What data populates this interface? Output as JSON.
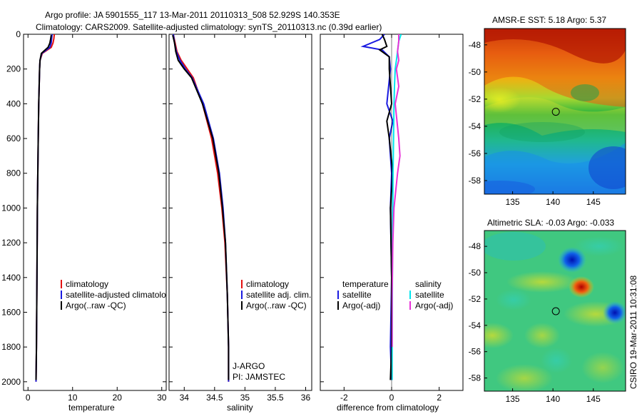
{
  "header": {
    "line1": "Argo profile: JA 5901555_117 13-Mar-2011 20110313_508 52.929S 140.353E",
    "line2": "Climatology: CARS2009. Satellite-adjusted climatology: synTS_20110313.nc (0.39d earlier)"
  },
  "footer_stamp": "CSIRO 19-Mar-2011 10:31:08",
  "colors": {
    "red": "#e41010",
    "blue": "#1a1ae0",
    "black": "#000000",
    "cyan": "#00e5ee",
    "magenta": "#e832d8"
  },
  "chart_data": [
    {
      "type": "line",
      "id": "temperature",
      "xlabel": "temperature",
      "ylabel": "",
      "xlim": [
        -1,
        31
      ],
      "ylim": [
        2050,
        0
      ],
      "xticks": [
        0,
        10,
        20,
        30
      ],
      "xtick_labels": [
        "0",
        "10",
        "20",
        "30"
      ],
      "yticks": [
        0,
        200,
        400,
        600,
        800,
        1000,
        1200,
        1400,
        1600,
        1800,
        2000
      ],
      "ytick_labels": [
        "0",
        "200",
        "400",
        "600",
        "800",
        "1000",
        "1200",
        "1400",
        "1600",
        "1800",
        "2000"
      ],
      "legend": [
        "climatology",
        "satellite-adjusted climatology",
        "Argo(..raw -QC)"
      ],
      "series": [
        {
          "name": "climatology",
          "color": "red",
          "x": [
            5.9,
            5.8,
            5.6,
            5.2,
            3.2,
            2.7,
            2.6,
            2.4,
            2.3,
            2.2,
            2.1,
            2.0,
            1.9,
            1.8
          ],
          "y": [
            0,
            25,
            50,
            75,
            110,
            150,
            200,
            400,
            600,
            800,
            1000,
            1400,
            1800,
            2000
          ]
        },
        {
          "name": "satellite-adjusted climatology",
          "color": "blue",
          "x": [
            5.4,
            5.3,
            5.2,
            4.9,
            3.1,
            2.7,
            2.6,
            2.4,
            2.3,
            2.2,
            2.1,
            2.0,
            1.9,
            1.8
          ],
          "y": [
            0,
            25,
            50,
            75,
            110,
            150,
            200,
            400,
            600,
            800,
            1000,
            1400,
            1800,
            2000
          ]
        },
        {
          "name": "Argo(..raw -QC)",
          "color": "black",
          "x": [
            5.2,
            5.1,
            4.9,
            4.5,
            3.0,
            2.7,
            2.6,
            2.4,
            2.3,
            2.2,
            2.1,
            2.0,
            1.9,
            1.8
          ],
          "y": [
            5,
            25,
            50,
            75,
            110,
            150,
            200,
            400,
            600,
            800,
            1000,
            1400,
            1800,
            1990
          ]
        }
      ]
    },
    {
      "type": "line",
      "id": "salinity",
      "xlabel": "salinity",
      "xlim": [
        33.75,
        36.1
      ],
      "ylim": [
        2050,
        0
      ],
      "xticks": [
        34,
        34.5,
        35,
        35.5,
        36
      ],
      "xtick_labels": [
        "34",
        "34.5",
        "35",
        "35.5",
        "36"
      ],
      "legend": [
        "climatology",
        "satellite adj. clim.",
        "Argo(..raw -QC)"
      ],
      "annotation": [
        "J-ARGO",
        "PI: JAMSTEC"
      ],
      "series": [
        {
          "name": "climatology",
          "color": "red",
          "x": [
            33.82,
            33.85,
            33.88,
            33.95,
            34.05,
            34.15,
            34.3,
            34.45,
            34.55,
            34.62,
            34.67,
            34.71,
            34.73,
            34.73
          ],
          "y": [
            0,
            50,
            100,
            150,
            200,
            250,
            400,
            600,
            800,
            1000,
            1200,
            1500,
            1800,
            2000
          ]
        },
        {
          "name": "satellite adj. clim.",
          "color": "blue",
          "x": [
            33.82,
            33.84,
            33.87,
            33.93,
            34.02,
            34.13,
            34.32,
            34.48,
            34.58,
            34.64,
            34.68,
            34.71,
            34.73,
            34.73
          ],
          "y": [
            0,
            50,
            100,
            150,
            200,
            250,
            400,
            600,
            800,
            1000,
            1200,
            1500,
            1800,
            2000
          ]
        },
        {
          "name": "Argo(..raw -QC)",
          "color": "black",
          "x": [
            33.81,
            33.84,
            33.86,
            33.9,
            34.0,
            34.12,
            34.3,
            34.47,
            34.57,
            34.63,
            34.68,
            34.71,
            34.73,
            34.73
          ],
          "y": [
            5,
            50,
            100,
            150,
            200,
            250,
            400,
            600,
            800,
            1000,
            1200,
            1500,
            1800,
            1990
          ]
        }
      ]
    },
    {
      "type": "line",
      "id": "difference",
      "xlabel": "difference from climatology",
      "xlim": [
        -3,
        3
      ],
      "ylim": [
        2050,
        0
      ],
      "xticks": [
        -2,
        0,
        2
      ],
      "xtick_labels": [
        "-2",
        "0",
        "2"
      ],
      "legend_left_title": "temperature",
      "legend_right_title": "salinity",
      "legend_left": [
        "satellite",
        "Argo(-adj)"
      ],
      "legend_right": [
        "satellite",
        "Argo(-adj)"
      ],
      "series": [
        {
          "name": "temperature satellite",
          "color": "blue",
          "x": [
            -0.3,
            -0.5,
            -1.2,
            -0.4,
            -0.1,
            -0.05,
            -0.2,
            0.05,
            -0.1,
            0.0,
            -0.05,
            0.0,
            -0.05,
            0.0
          ],
          "y": [
            0,
            30,
            70,
            90,
            130,
            200,
            400,
            500,
            600,
            800,
            1000,
            1400,
            1800,
            1990
          ]
        },
        {
          "name": "temperature Argo(-adj)",
          "color": "black",
          "x": [
            -0.4,
            -0.3,
            -0.2,
            -0.5,
            -0.1,
            -0.1,
            0.0,
            -0.2,
            -0.1,
            0.05,
            -0.05,
            0.0,
            0.0,
            -0.05
          ],
          "y": [
            0,
            30,
            70,
            90,
            130,
            200,
            400,
            500,
            600,
            800,
            1000,
            1400,
            1800,
            1990
          ]
        },
        {
          "name": "salinity satellite",
          "color": "cyan",
          "x": [
            0.4,
            0.3,
            0.25,
            0.2,
            0.15,
            0.12,
            0.1,
            0.08,
            0.06,
            0.05,
            0.04,
            0.03,
            0.02,
            0.02
          ],
          "y": [
            0,
            40,
            100,
            150,
            200,
            300,
            400,
            600,
            800,
            1000,
            1200,
            1500,
            1800,
            1990
          ]
        },
        {
          "name": "salinity Argo(-adj)",
          "color": "magenta",
          "x": [
            0.3,
            0.3,
            0.25,
            0.3,
            0.2,
            0.3,
            0.15,
            0.3,
            0.35,
            0.25,
            0.1,
            0.05,
            0.02,
            0.02
          ],
          "y": [
            0,
            40,
            100,
            150,
            200,
            300,
            400,
            600,
            700,
            800,
            1000,
            1200,
            1500,
            1800
          ]
        }
      ]
    },
    {
      "type": "heatmap",
      "id": "sst",
      "title": "AMSR-E SST: 5.18 Argo: 5.37",
      "xticks": [
        135,
        140,
        145
      ],
      "xtick_labels": [
        "135",
        "140",
        "145"
      ],
      "yticks": [
        -48,
        -50,
        -52,
        -54,
        -56,
        -58
      ],
      "ytick_labels": [
        "-48",
        "-50",
        "-52",
        "-54",
        "-56",
        "-58"
      ],
      "xlim": [
        131.5,
        149
      ],
      "ylim": [
        -59,
        -46.8
      ],
      "argo_position": {
        "lon": 140.353,
        "lat": -52.929
      }
    },
    {
      "type": "heatmap",
      "id": "sla",
      "title": "Altimetric SLA: -0.03 Argo: -0.033",
      "xticks": [
        135,
        140,
        145
      ],
      "xtick_labels": [
        "135",
        "140",
        "145"
      ],
      "yticks": [
        -48,
        -50,
        -52,
        -54,
        -56,
        -58
      ],
      "ytick_labels": [
        "-48",
        "-50",
        "-52",
        "-54",
        "-56",
        "-58"
      ],
      "xlim": [
        131.5,
        149
      ],
      "ylim": [
        -59,
        -46.8
      ],
      "argo_position": {
        "lon": 140.353,
        "lat": -52.929
      }
    }
  ]
}
